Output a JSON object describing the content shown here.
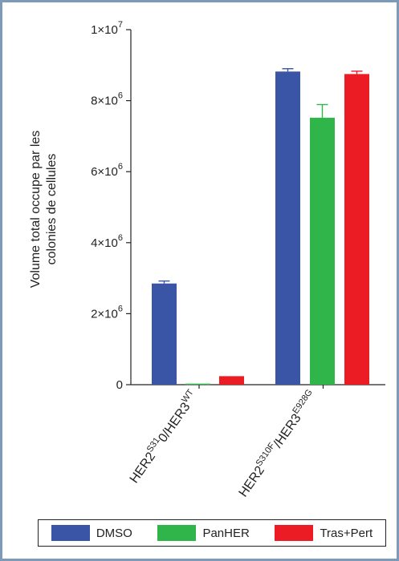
{
  "chart_data": {
    "type": "bar",
    "ylabel_line1": "Volume total occupe par les",
    "ylabel_line2": "colonies de cellules",
    "ylim": [
      0,
      10000000
    ],
    "yticks": [
      {
        "value": 0,
        "base": "0",
        "exp": ""
      },
      {
        "value": 2000000,
        "base": "2×10",
        "exp": "6"
      },
      {
        "value": 4000000,
        "base": "4×10",
        "exp": "6"
      },
      {
        "value": 6000000,
        "base": "6×10",
        "exp": "6"
      },
      {
        "value": 8000000,
        "base": "8×10",
        "exp": "6"
      },
      {
        "value": 10000000,
        "base": "1×10",
        "exp": "7"
      }
    ],
    "categories": [
      {
        "parts": [
          [
            "HER2",
            ""
          ],
          [
            "S31",
            "sup"
          ],
          [
            "0/HER3",
            ""
          ],
          [
            "WT",
            "sup"
          ]
        ]
      },
      {
        "parts": [
          [
            "HER2",
            ""
          ],
          [
            "S310F",
            "sup"
          ],
          [
            "/HER3",
            ""
          ],
          [
            "E928G",
            "sup"
          ]
        ]
      }
    ],
    "series": [
      {
        "name": "DMSO",
        "color": "#3a55a6",
        "values": [
          2850000,
          8820000
        ],
        "errors": [
          70000,
          80000
        ]
      },
      {
        "name": "PanHER",
        "color": "#2fb54a",
        "values": [
          30000,
          7520000
        ],
        "errors": [
          0,
          370000
        ]
      },
      {
        "name": "Tras+Pert",
        "color": "#ec1c24",
        "values": [
          240000,
          8750000
        ],
        "errors": [
          0,
          80000
        ]
      }
    ],
    "grid": false,
    "legend_position": "bottom"
  }
}
